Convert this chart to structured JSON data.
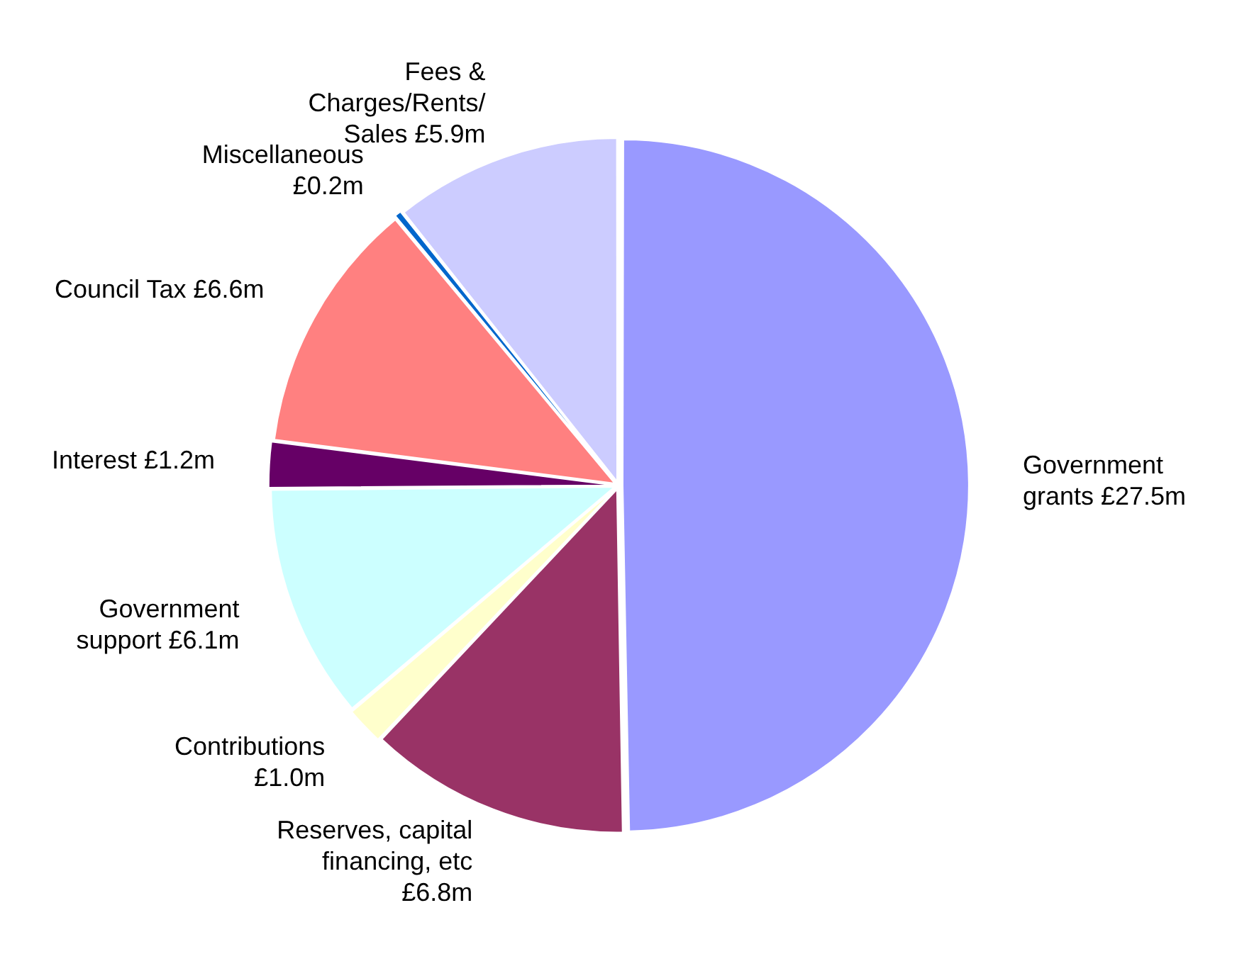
{
  "chart_data": {
    "type": "pie",
    "categories": [
      "Government grants",
      "Reserves, capital financing, etc",
      "Contributions",
      "Government support",
      "Interest",
      "Council Tax",
      "Miscellaneous",
      "Fees & Charges/Rents/ Sales"
    ],
    "values": [
      27.5,
      6.8,
      1.0,
      6.1,
      1.2,
      6.6,
      0.2,
      5.9
    ],
    "value_labels": [
      "£27.5m",
      "£6.8m",
      "£1.0m",
      "£6.1m",
      "£1.2m",
      "£6.6m",
      "£0.2m",
      "£5.9m"
    ],
    "colors": [
      "#9999ff",
      "#993366",
      "#ffffcc",
      "#ccffff",
      "#660066",
      "#ff8080",
      "#0066cc",
      "#ccccff"
    ],
    "legend": false
  }
}
